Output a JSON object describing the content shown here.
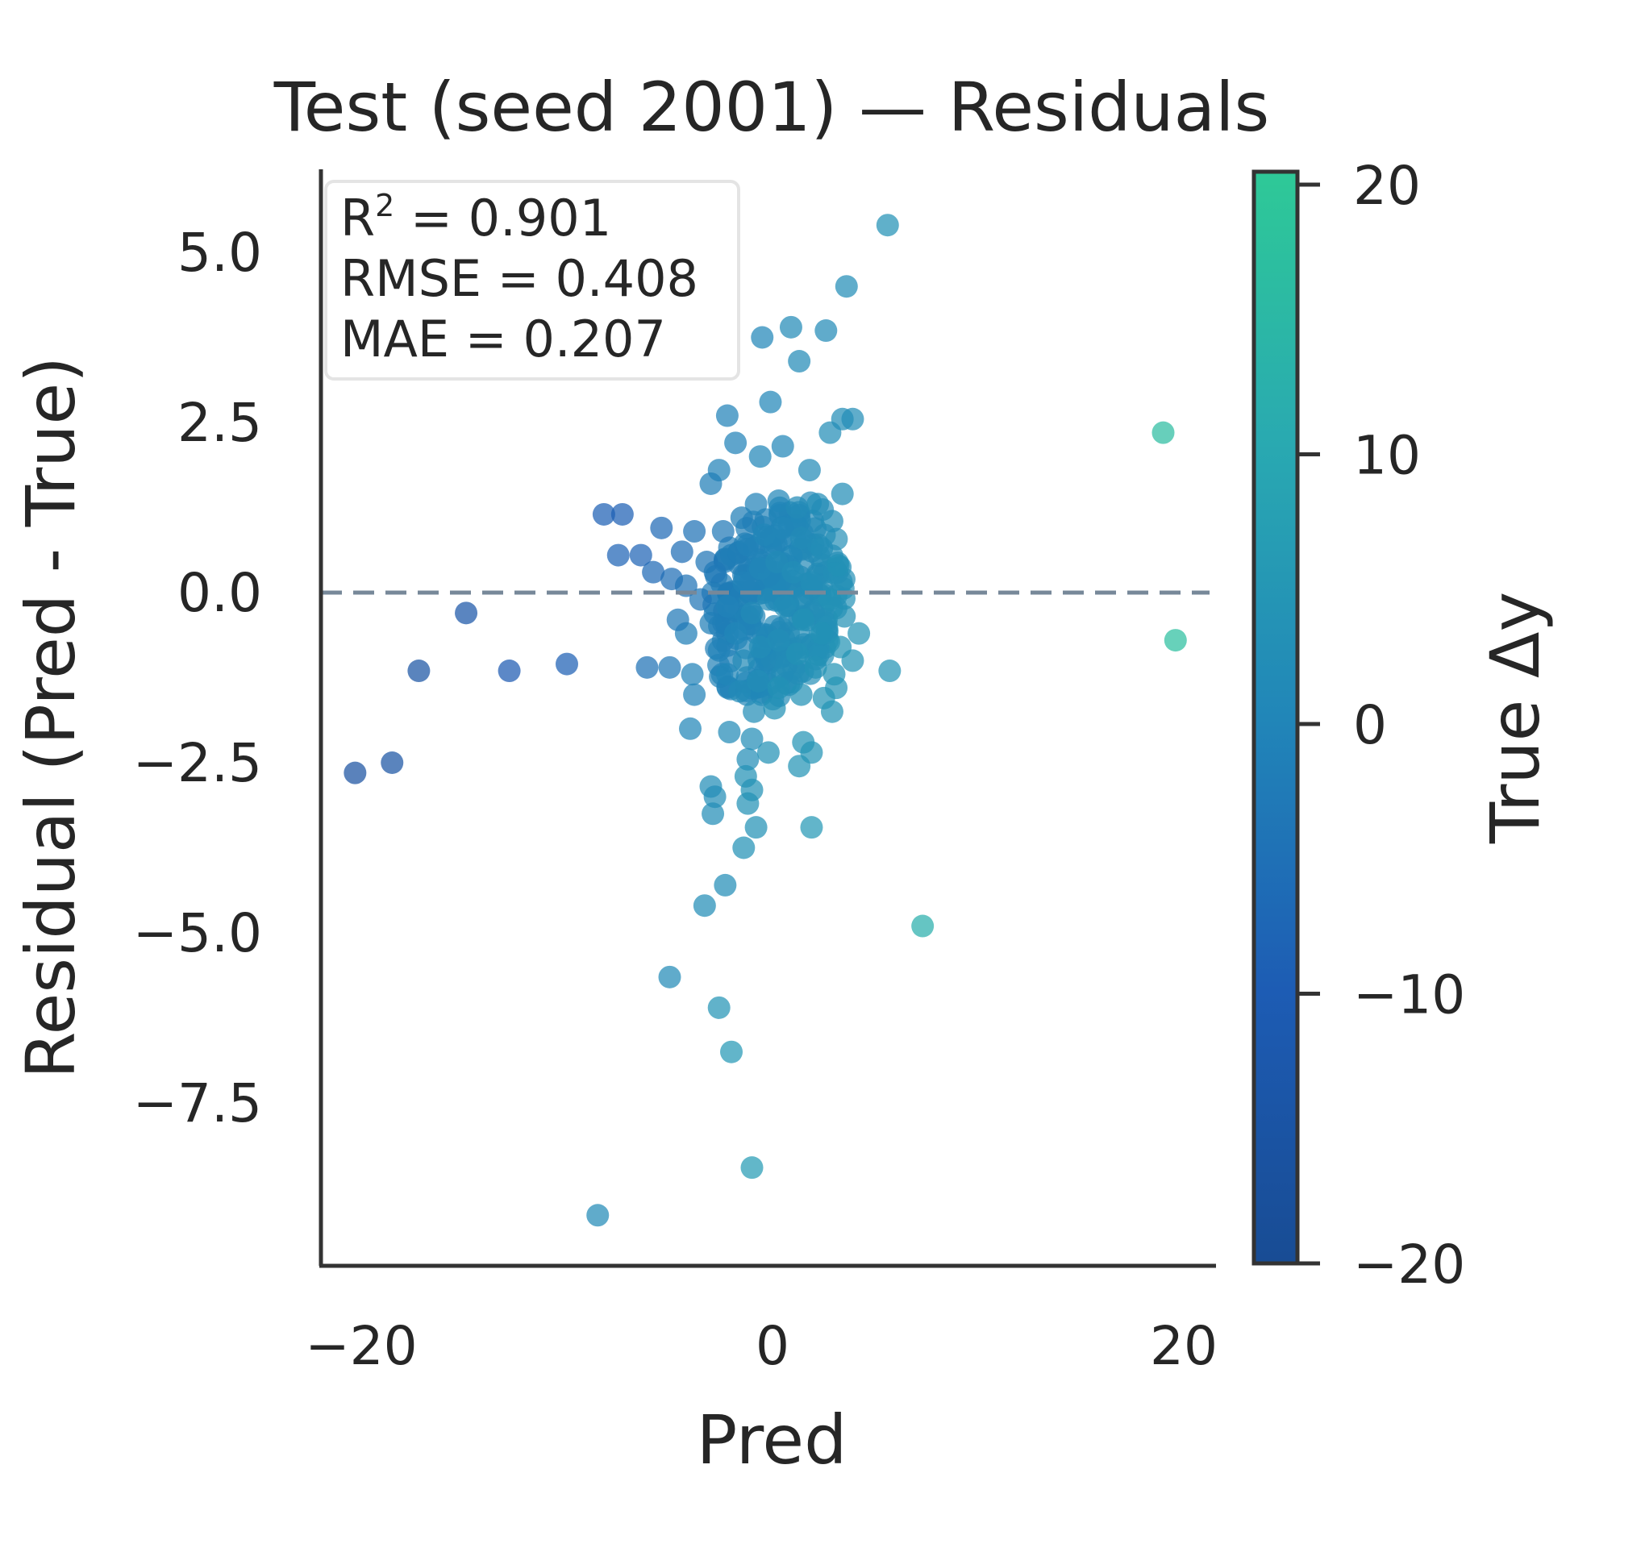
{
  "chart_data": {
    "type": "scatter",
    "title": "Test (seed 2001) — Residuals",
    "xlabel": "Pred",
    "ylabel": "Residual (Pred - True)",
    "xlim": [
      -22,
      22
    ],
    "ylim": [
      -10,
      6.2
    ],
    "xticks": [
      "−20",
      "0",
      "20"
    ],
    "xtick_values": [
      -20,
      0,
      20
    ],
    "yticks": [
      "5.0",
      "2.5",
      "0.0",
      "−2.5",
      "−5.0",
      "−7.5"
    ],
    "ytick_values": [
      5,
      2.5,
      0,
      -2.5,
      -5,
      -7.5
    ],
    "grid": false,
    "reference_line": {
      "y": 0,
      "style": "dashed",
      "color": "#778899"
    },
    "stats": {
      "r2_label": "R",
      "r2_sup": "2",
      "r2_value": " = 0.901",
      "rmse": "RMSE = 0.408",
      "mae": "MAE = 0.207",
      "placement": "top-left"
    },
    "colorbar": {
      "label": "True Δy",
      "range": [
        -20,
        20
      ],
      "ticks": [
        "20",
        "10",
        "0",
        "−10",
        "−20"
      ],
      "tick_values": [
        20,
        10,
        0,
        -10,
        -20
      ],
      "colors": [
        "#184c94",
        "#1d5cb4",
        "#2186b8",
        "#29a9b1",
        "#2ec997"
      ]
    },
    "points": [
      {
        "x": 5.6,
        "y": 5.4,
        "c": 3
      },
      {
        "x": 3.6,
        "y": 4.5,
        "c": 2
      },
      {
        "x": 0.9,
        "y": 3.9,
        "c": 1
      },
      {
        "x": 2.6,
        "y": 3.85,
        "c": 1
      },
      {
        "x": -0.5,
        "y": 3.75,
        "c": 0
      },
      {
        "x": 1.3,
        "y": 3.4,
        "c": 1
      },
      {
        "x": -0.1,
        "y": 2.8,
        "c": 0
      },
      {
        "x": -2.2,
        "y": 2.6,
        "c": -1
      },
      {
        "x": 3.4,
        "y": 2.55,
        "c": 2
      },
      {
        "x": 2.8,
        "y": 2.35,
        "c": 2
      },
      {
        "x": -1.8,
        "y": 2.2,
        "c": -1
      },
      {
        "x": 0.5,
        "y": 2.15,
        "c": 0
      },
      {
        "x": -0.6,
        "y": 2.0,
        "c": 0
      },
      {
        "x": 1.8,
        "y": 1.8,
        "c": 1
      },
      {
        "x": -2.6,
        "y": 1.8,
        "c": -1
      },
      {
        "x": 3.4,
        "y": 1.45,
        "c": 2
      },
      {
        "x": -3.0,
        "y": 1.6,
        "c": -2
      },
      {
        "x": 19.0,
        "y": 2.35,
        "c": 16
      },
      {
        "x": -8.2,
        "y": 1.15,
        "c": -9
      },
      {
        "x": -7.3,
        "y": 1.15,
        "c": -9
      },
      {
        "x": -5.4,
        "y": 0.95,
        "c": -7
      },
      {
        "x": -6.4,
        "y": 0.55,
        "c": -8
      },
      {
        "x": -7.5,
        "y": 0.55,
        "c": -8
      },
      {
        "x": -4.4,
        "y": 0.6,
        "c": -6
      },
      {
        "x": -3.8,
        "y": 0.9,
        "c": -5
      },
      {
        "x": -5.8,
        "y": 0.3,
        "c": -7
      },
      {
        "x": -4.9,
        "y": 0.2,
        "c": -6
      },
      {
        "x": -3.2,
        "y": 0.45,
        "c": -4
      },
      {
        "x": -2.4,
        "y": 0.9,
        "c": -3
      },
      {
        "x": -1.5,
        "y": 1.1,
        "c": -2
      },
      {
        "x": -0.8,
        "y": 1.3,
        "c": -1
      },
      {
        "x": 0.3,
        "y": 1.35,
        "c": 0
      },
      {
        "x": 1.2,
        "y": 1.25,
        "c": 1
      },
      {
        "x": 2.2,
        "y": 1.3,
        "c": 2
      },
      {
        "x": 2.9,
        "y": 1.05,
        "c": 2
      },
      {
        "x": -4.2,
        "y": 0.1,
        "c": -5
      },
      {
        "x": -3.5,
        "y": -0.1,
        "c": -4
      },
      {
        "x": -2.8,
        "y": 0.3,
        "c": -3
      },
      {
        "x": -2.0,
        "y": 0.55,
        "c": -2
      },
      {
        "x": -1.2,
        "y": 0.7,
        "c": -1
      },
      {
        "x": -0.4,
        "y": 0.85,
        "c": 0
      },
      {
        "x": 0.5,
        "y": 0.95,
        "c": 0
      },
      {
        "x": 1.4,
        "y": 0.8,
        "c": 1
      },
      {
        "x": 2.4,
        "y": 0.65,
        "c": 2
      },
      {
        "x": 3.2,
        "y": 0.4,
        "c": 3
      },
      {
        "x": -3.0,
        "y": -0.45,
        "c": -2
      },
      {
        "x": -2.2,
        "y": -0.2,
        "c": -1
      },
      {
        "x": -1.4,
        "y": 0.15,
        "c": -1
      },
      {
        "x": -0.6,
        "y": 0.35,
        "c": 0
      },
      {
        "x": 0.2,
        "y": 0.45,
        "c": 1
      },
      {
        "x": 1.0,
        "y": 0.3,
        "c": 2
      },
      {
        "x": 1.9,
        "y": 0.15,
        "c": 2
      },
      {
        "x": 2.8,
        "y": -0.1,
        "c": 3
      },
      {
        "x": 3.5,
        "y": -0.35,
        "c": 3
      },
      {
        "x": -2.6,
        "y": -0.85,
        "c": -1
      },
      {
        "x": -1.8,
        "y": -0.6,
        "c": 0
      },
      {
        "x": -1.0,
        "y": -0.3,
        "c": 1
      },
      {
        "x": -0.2,
        "y": -0.1,
        "c": 1
      },
      {
        "x": 0.6,
        "y": -0.2,
        "c": 2
      },
      {
        "x": 1.5,
        "y": -0.4,
        "c": 3
      },
      {
        "x": 2.4,
        "y": -0.6,
        "c": 3
      },
      {
        "x": 3.3,
        "y": -0.8,
        "c": 4
      },
      {
        "x": 4.2,
        "y": -0.6,
        "c": 4
      },
      {
        "x": -2.2,
        "y": -1.2,
        "c": 0
      },
      {
        "x": -1.4,
        "y": -1.0,
        "c": 1
      },
      {
        "x": -0.6,
        "y": -0.8,
        "c": 2
      },
      {
        "x": 0.3,
        "y": -0.7,
        "c": 2
      },
      {
        "x": 1.2,
        "y": -0.9,
        "c": 3
      },
      {
        "x": 2.1,
        "y": -1.1,
        "c": 3
      },
      {
        "x": 3.0,
        "y": -1.2,
        "c": 4
      },
      {
        "x": 3.9,
        "y": -1.0,
        "c": 4
      },
      {
        "x": -1.6,
        "y": -1.45,
        "c": 1
      },
      {
        "x": -0.7,
        "y": -1.3,
        "c": 2
      },
      {
        "x": 0.3,
        "y": -1.4,
        "c": 3
      },
      {
        "x": 1.4,
        "y": -1.5,
        "c": 3
      },
      {
        "x": 2.5,
        "y": -1.55,
        "c": 4
      },
      {
        "x": 3.1,
        "y": -1.4,
        "c": 4
      },
      {
        "x": 0.1,
        "y": -1.7,
        "c": 3
      },
      {
        "x": -0.9,
        "y": -1.75,
        "c": 2
      },
      {
        "x": 2.9,
        "y": -1.75,
        "c": 4
      },
      {
        "x": -3.8,
        "y": -1.5,
        "c": -1
      },
      {
        "x": -4.2,
        "y": -0.6,
        "c": -2
      },
      {
        "x": -4.6,
        "y": -0.4,
        "c": -3
      },
      {
        "x": -3.9,
        "y": -1.2,
        "c": -1
      },
      {
        "x": -6.1,
        "y": -1.1,
        "c": -5
      },
      {
        "x": -5.0,
        "y": -1.1,
        "c": -3
      },
      {
        "x": -4.0,
        "y": -2.0,
        "c": 0
      },
      {
        "x": -2.1,
        "y": -2.05,
        "c": 1
      },
      {
        "x": -1.0,
        "y": -2.15,
        "c": 2
      },
      {
        "x": -1.2,
        "y": -2.45,
        "c": 2
      },
      {
        "x": -0.2,
        "y": -2.35,
        "c": 3
      },
      {
        "x": 1.5,
        "y": -2.2,
        "c": 4
      },
      {
        "x": 1.9,
        "y": -2.35,
        "c": 4
      },
      {
        "x": 1.3,
        "y": -2.55,
        "c": 4
      },
      {
        "x": -1.3,
        "y": -2.7,
        "c": 3
      },
      {
        "x": -3.0,
        "y": -2.85,
        "c": 2
      },
      {
        "x": -1.0,
        "y": -2.9,
        "c": 3
      },
      {
        "x": -2.8,
        "y": -3.0,
        "c": 2
      },
      {
        "x": -1.2,
        "y": -3.1,
        "c": 3
      },
      {
        "x": -2.9,
        "y": -3.25,
        "c": 2
      },
      {
        "x": -0.8,
        "y": -3.45,
        "c": 3
      },
      {
        "x": 1.9,
        "y": -3.45,
        "c": 5
      },
      {
        "x": -1.4,
        "y": -3.75,
        "c": 3
      },
      {
        "x": -2.3,
        "y": -4.3,
        "c": 2
      },
      {
        "x": -3.3,
        "y": -4.6,
        "c": 2
      },
      {
        "x": 7.3,
        "y": -4.9,
        "c": 12
      },
      {
        "x": -5.0,
        "y": -5.65,
        "c": 1
      },
      {
        "x": -2.6,
        "y": -6.1,
        "c": 4
      },
      {
        "x": -2.0,
        "y": -6.75,
        "c": 5
      },
      {
        "x": -1.0,
        "y": -8.45,
        "c": 6
      },
      {
        "x": -8.5,
        "y": -9.15,
        "c": 1
      },
      {
        "x": -14.9,
        "y": -0.3,
        "c": -14
      },
      {
        "x": -12.8,
        "y": -1.15,
        "c": -11
      },
      {
        "x": -10.0,
        "y": -1.05,
        "c": -9
      },
      {
        "x": -17.2,
        "y": -1.15,
        "c": -15
      },
      {
        "x": -18.5,
        "y": -2.5,
        "c": -15
      },
      {
        "x": -20.3,
        "y": -2.65,
        "c": -16
      },
      {
        "x": 19.6,
        "y": -0.7,
        "c": 17
      },
      {
        "x": 5.7,
        "y": -1.15,
        "c": 4
      },
      {
        "x": 3.9,
        "y": 2.55,
        "c": 2
      }
    ]
  }
}
